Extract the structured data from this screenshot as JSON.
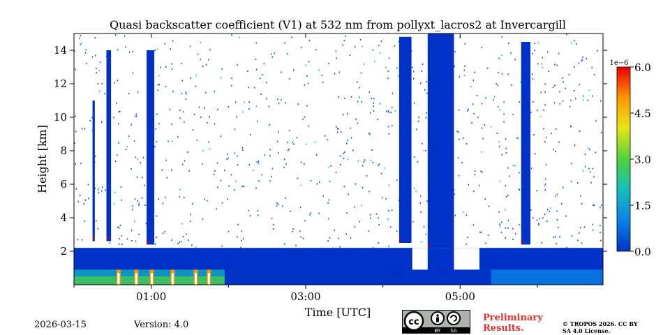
{
  "chart_data": {
    "type": "heatmap",
    "title": "Quasi backscatter coefficient (V1) at 532 nm from pollyxt_lacros2 at Invercargill",
    "xlabel": "Time [UTC]",
    "ylabel": "Height [km]",
    "xlim_hours": [
      0,
      6.85
    ],
    "ylim_km": [
      0,
      15
    ],
    "x_ticks": [
      {
        "value": 1,
        "label": "01:00"
      },
      {
        "value": 3,
        "label": "03:00"
      },
      {
        "value": 5,
        "label": "05:00"
      }
    ],
    "x_minor_ticks": [
      0,
      2,
      4,
      6
    ],
    "y_ticks": [
      {
        "value": 2,
        "label": "2"
      },
      {
        "value": 4,
        "label": "4"
      },
      {
        "value": 6,
        "label": "6"
      },
      {
        "value": 8,
        "label": "8"
      },
      {
        "value": 10,
        "label": "10"
      },
      {
        "value": 12,
        "label": "12"
      },
      {
        "value": 14,
        "label": "14"
      }
    ],
    "colorbar": {
      "min": 0.0,
      "max": 6.0,
      "exponent_label": "1e−6",
      "ticks": [
        "0.0",
        "1.5",
        "3.0",
        "4.5",
        "6.0"
      ],
      "colors": [
        "#0032c8",
        "#0a82e6",
        "#14bebe",
        "#50d23c",
        "#e6e614",
        "#ff9600",
        "#e60000"
      ]
    },
    "boundary_layer_top_km": 2.2,
    "cloud_columns": [
      {
        "t_start": 0.24,
        "t_end": 0.27,
        "bottom_km": 2.6,
        "top_km": 11.0
      },
      {
        "t_start": 0.42,
        "t_end": 0.48,
        "bottom_km": 2.6,
        "top_km": 14.0
      },
      {
        "t_start": 0.94,
        "t_end": 1.04,
        "bottom_km": 2.4,
        "top_km": 14.0
      },
      {
        "t_start": 4.21,
        "t_end": 4.37,
        "bottom_km": 2.5,
        "top_km": 14.8
      },
      {
        "t_start": 4.58,
        "t_end": 4.92,
        "bottom_km": 2.2,
        "top_km": 15.0
      },
      {
        "t_start": 5.79,
        "t_end": 5.91,
        "bottom_km": 2.4,
        "top_km": 14.5
      }
    ]
  },
  "footer": {
    "date": "2026-03-15",
    "version": "Version: 4.0",
    "license_badge": "cc-by-sa-icon",
    "preliminary": "Preliminary Results.",
    "copyright": "© TROPOS 2026. CC BY SA 4.0 License."
  }
}
